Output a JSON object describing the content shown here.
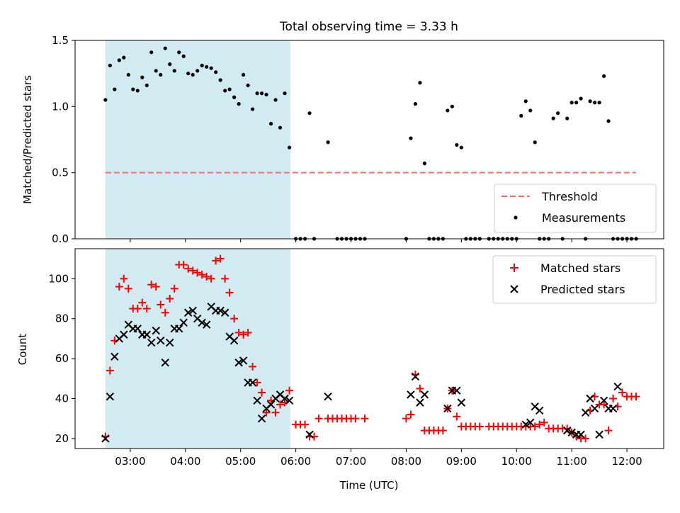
{
  "title": "Total observing time = 3.33 h",
  "xlabel": "Time (UTC)",
  "x_ticks": [
    "03:00",
    "04:00",
    "05:00",
    "06:00",
    "07:00",
    "08:00",
    "09:00",
    "10:00",
    "11:00",
    "12:00"
  ],
  "colors": {
    "shade": "#add8e6",
    "threshold": "#ff6b6b",
    "matched": "#ff0000",
    "predicted": "#000000",
    "measurement": "#000000"
  },
  "chart_data": [
    {
      "type": "scatter",
      "ylabel": "Matched/Predicted stars",
      "ylim": [
        0,
        1.5
      ],
      "yticks": [
        "0.0",
        "0.5",
        "1.0",
        "1.5"
      ],
      "legend": {
        "placement": "lower-right",
        "entries": [
          "Threshold",
          "Measurements"
        ]
      },
      "shaded_interval": [
        "02:33",
        "05:54"
      ],
      "threshold": {
        "name": "Threshold",
        "y": 0.5,
        "x_range": [
          "02:33",
          "12:10"
        ]
      },
      "measurements": {
        "name": "Measurements",
        "x": [
          "02:33",
          "02:38",
          "02:43",
          "02:48",
          "02:53",
          "02:58",
          "03:03",
          "03:08",
          "03:13",
          "03:18",
          "03:23",
          "03:28",
          "03:33",
          "03:38",
          "03:43",
          "03:48",
          "03:53",
          "03:58",
          "04:03",
          "04:08",
          "04:13",
          "04:18",
          "04:23",
          "04:28",
          "04:33",
          "04:38",
          "04:43",
          "04:48",
          "04:53",
          "04:58",
          "05:03",
          "05:08",
          "05:13",
          "05:18",
          "05:23",
          "05:28",
          "05:33",
          "05:38",
          "05:43",
          "05:48",
          "05:53",
          "06:00",
          "06:05",
          "06:10",
          "06:15",
          "06:20",
          "06:35",
          "06:45",
          "06:50",
          "06:55",
          "07:00",
          "07:05",
          "07:10",
          "07:15",
          "08:00",
          "08:05",
          "08:10",
          "08:15",
          "08:20",
          "08:25",
          "08:30",
          "08:35",
          "08:40",
          "08:45",
          "08:50",
          "08:55",
          "09:00",
          "09:05",
          "09:10",
          "09:15",
          "09:20",
          "09:30",
          "09:35",
          "09:40",
          "09:45",
          "09:50",
          "09:55",
          "10:00",
          "10:05",
          "10:10",
          "10:15",
          "10:20",
          "10:25",
          "10:30",
          "10:35",
          "10:40",
          "10:45",
          "10:50",
          "10:55",
          "11:00",
          "11:05",
          "11:10",
          "11:15",
          "11:20",
          "11:25",
          "11:30",
          "11:35",
          "11:40",
          "11:45",
          "11:50",
          "11:55",
          "12:00",
          "12:05",
          "12:10"
        ],
        "y": [
          1.05,
          1.31,
          1.13,
          1.35,
          1.37,
          1.24,
          1.13,
          1.12,
          1.22,
          1.16,
          1.41,
          1.27,
          1.24,
          1.44,
          1.32,
          1.27,
          1.41,
          1.38,
          1.25,
          1.24,
          1.27,
          1.31,
          1.3,
          1.29,
          1.26,
          1.2,
          1.12,
          1.13,
          1.07,
          1.02,
          1.24,
          1.16,
          0.98,
          1.1,
          1.1,
          1.09,
          0.87,
          1.05,
          0.84,
          1.1,
          0.69,
          0,
          0,
          0,
          0.95,
          0,
          0.73,
          0,
          0,
          0,
          0,
          0,
          0,
          0,
          0,
          0.76,
          1.02,
          1.18,
          0.57,
          0,
          0,
          0,
          0,
          0.97,
          1.0,
          0.71,
          0.69,
          0,
          0,
          0,
          0,
          0,
          0,
          0,
          0,
          0,
          0,
          0,
          0.93,
          1.04,
          0.97,
          0.73,
          0,
          0,
          0,
          0.91,
          0.95,
          0,
          0.91,
          1.03,
          1.03,
          1.06,
          0,
          1.04,
          1.03,
          1.03,
          1.23,
          0.89,
          0,
          0,
          0,
          0,
          0,
          0
        ]
      }
    },
    {
      "type": "scatter",
      "ylabel": "Count",
      "ylim": [
        15,
        115
      ],
      "yticks": [
        "20",
        "40",
        "60",
        "80",
        "100"
      ],
      "legend": {
        "placement": "top-right",
        "entries": [
          "Matched stars",
          "Predicted stars"
        ]
      },
      "shaded_interval": [
        "02:33",
        "05:54"
      ],
      "series": [
        {
          "name": "Matched stars",
          "marker": "plus",
          "x": [
            "02:33",
            "02:38",
            "02:43",
            "02:48",
            "02:53",
            "02:58",
            "03:03",
            "03:08",
            "03:13",
            "03:18",
            "03:23",
            "03:28",
            "03:33",
            "03:38",
            "03:43",
            "03:48",
            "03:53",
            "03:58",
            "04:03",
            "04:08",
            "04:13",
            "04:18",
            "04:23",
            "04:28",
            "04:33",
            "04:38",
            "04:43",
            "04:48",
            "04:53",
            "04:58",
            "05:03",
            "05:08",
            "05:13",
            "05:18",
            "05:23",
            "05:28",
            "05:33",
            "05:38",
            "05:43",
            "05:48",
            "05:53",
            "06:00",
            "06:05",
            "06:10",
            "06:15",
            "06:20",
            "06:25",
            "06:35",
            "06:40",
            "06:45",
            "06:50",
            "06:55",
            "07:00",
            "07:05",
            "07:15",
            "08:00",
            "08:05",
            "08:10",
            "08:15",
            "08:20",
            "08:25",
            "08:30",
            "08:35",
            "08:40",
            "08:45",
            "08:50",
            "08:55",
            "09:00",
            "09:05",
            "09:10",
            "09:15",
            "09:20",
            "09:30",
            "09:35",
            "09:40",
            "09:45",
            "09:50",
            "09:55",
            "10:00",
            "10:05",
            "10:10",
            "10:15",
            "10:20",
            "10:25",
            "10:30",
            "10:35",
            "10:40",
            "10:45",
            "10:50",
            "10:55",
            "11:00",
            "11:05",
            "11:10",
            "11:15",
            "11:20",
            "11:25",
            "11:30",
            "11:35",
            "11:40",
            "11:45",
            "11:50",
            "11:55",
            "12:00",
            "12:05",
            "12:10"
          ],
          "y": [
            21,
            54,
            69,
            96,
            100,
            95,
            85,
            85,
            88,
            85,
            97,
            96,
            87,
            83,
            90,
            95,
            107,
            107,
            105,
            104,
            103,
            102,
            101,
            100,
            109,
            110,
            100,
            93,
            80,
            73,
            72,
            73,
            56,
            48,
            43,
            33,
            39,
            33,
            37,
            38,
            44,
            27,
            27,
            27,
            21,
            21,
            30,
            30,
            30,
            30,
            30,
            30,
            30,
            30,
            30,
            30,
            32,
            52,
            45,
            24,
            24,
            24,
            24,
            24,
            35,
            44,
            31,
            26,
            26,
            26,
            26,
            26,
            26,
            26,
            26,
            26,
            26,
            26,
            26,
            26,
            26,
            26,
            26,
            27,
            28,
            25,
            25,
            25,
            25,
            25,
            23,
            21,
            20,
            20,
            34,
            41,
            37,
            37,
            24,
            40,
            36,
            43,
            41,
            41,
            41
          ]
        },
        {
          "name": "Predicted stars",
          "marker": "x",
          "x": [
            "02:33",
            "02:38",
            "02:43",
            "02:48",
            "02:53",
            "02:58",
            "03:03",
            "03:08",
            "03:13",
            "03:18",
            "03:23",
            "03:28",
            "03:33",
            "03:38",
            "03:43",
            "03:48",
            "03:53",
            "03:58",
            "04:03",
            "04:08",
            "04:13",
            "04:18",
            "04:23",
            "04:28",
            "04:33",
            "04:38",
            "04:43",
            "04:48",
            "04:53",
            "04:58",
            "05:03",
            "05:08",
            "05:13",
            "05:18",
            "05:23",
            "05:28",
            "05:33",
            "05:38",
            "05:43",
            "05:48",
            "05:53",
            "06:15",
            "06:35",
            "08:05",
            "08:10",
            "08:15",
            "08:20",
            "08:45",
            "08:50",
            "08:55",
            "09:00",
            "10:10",
            "10:15",
            "10:20",
            "10:25",
            "10:55",
            "11:00",
            "11:05",
            "11:10",
            "11:15",
            "11:20",
            "11:25",
            "11:30",
            "11:35",
            "11:40",
            "11:45",
            "11:50"
          ],
          "y": [
            20,
            41,
            61,
            70,
            72,
            77,
            75,
            75,
            72,
            72,
            68,
            74,
            69,
            58,
            68,
            75,
            75,
            78,
            83,
            84,
            80,
            78,
            77,
            86,
            84,
            84,
            83,
            71,
            69,
            58,
            59,
            48,
            48,
            39,
            30,
            35,
            37,
            40,
            42,
            40,
            39,
            22,
            41,
            42,
            51,
            38,
            42,
            35,
            44,
            44,
            38,
            27,
            28,
            36,
            34,
            24,
            23,
            22,
            22,
            33,
            40,
            35,
            22,
            39,
            35,
            35,
            46
          ]
        }
      ]
    }
  ]
}
